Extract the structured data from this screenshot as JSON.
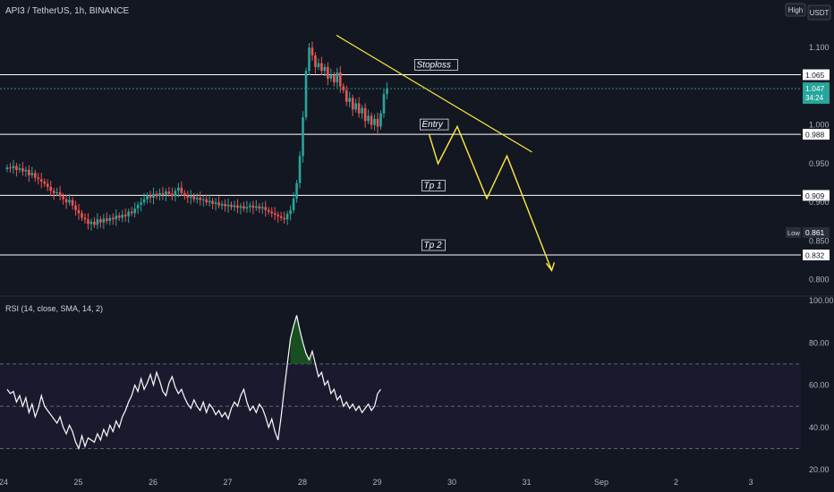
{
  "header": {
    "symbol_title": "API3 / TetherUS, 1h, BINANCE",
    "scale_mode": "High",
    "currency": "USDT"
  },
  "colors": {
    "bull": "#26a69a",
    "bear": "#ef5350",
    "pattern": "#ffeb3b",
    "level_line": "#ffffff",
    "rsi_line": "#ffffff",
    "rsi_band_fill": "#1a1a2e",
    "rsi_overbought_fill": "#1b5e20"
  },
  "chart_data": [
    {
      "type": "candlestick",
      "title": "API3 / TetherUS, 1h, BINANCE",
      "x_ticks": [
        "24",
        "25",
        "26",
        "27",
        "28",
        "29",
        "30",
        "31",
        "Sep",
        "2",
        "3"
      ],
      "y_ticks": [
        "1.100",
        "1.000",
        "0.950",
        "0.900",
        "0.850",
        "0.800"
      ],
      "ylim": [
        0.78,
        1.15
      ],
      "price_labels": {
        "current": {
          "value": "1.047",
          "countdown": "34:24"
        },
        "high": {
          "label": "High",
          "value": "1.116"
        },
        "low": {
          "label": "Low",
          "value": "0.861"
        }
      },
      "levels": [
        {
          "label": "Stoploss",
          "value": 1.065,
          "text": "1.065"
        },
        {
          "label": "Entry",
          "value": 0.988,
          "text": "0.988"
        },
        {
          "label": "Tp 1",
          "value": 0.909,
          "text": "0.909"
        },
        {
          "label": "Tp 2",
          "value": 0.832,
          "text": "0.832"
        }
      ],
      "candles_close": [
        0.945,
        0.944,
        0.947,
        0.942,
        0.944,
        0.94,
        0.942,
        0.935,
        0.938,
        0.932,
        0.93,
        0.927,
        0.924,
        0.92,
        0.915,
        0.912,
        0.913,
        0.908,
        0.904,
        0.9,
        0.903,
        0.896,
        0.89,
        0.886,
        0.88,
        0.878,
        0.872,
        0.875,
        0.871,
        0.878,
        0.874,
        0.879,
        0.876,
        0.88,
        0.878,
        0.883,
        0.88,
        0.884,
        0.882,
        0.888,
        0.886,
        0.892,
        0.897,
        0.9,
        0.904,
        0.909,
        0.906,
        0.911,
        0.908,
        0.912,
        0.91,
        0.914,
        0.911,
        0.908,
        0.915,
        0.919,
        0.912,
        0.909,
        0.906,
        0.908,
        0.904,
        0.906,
        0.903,
        0.904,
        0.9,
        0.902,
        0.898,
        0.9,
        0.896,
        0.898,
        0.895,
        0.897,
        0.894,
        0.896,
        0.893,
        0.895,
        0.892,
        0.894,
        0.896,
        0.893,
        0.895,
        0.892,
        0.894,
        0.89,
        0.888,
        0.886,
        0.884,
        0.882,
        0.88,
        0.878,
        0.885,
        0.89,
        0.905,
        0.925,
        0.96,
        1.01,
        1.07,
        1.1,
        1.09,
        1.075,
        1.08,
        1.07,
        1.075,
        1.06,
        1.065,
        1.055,
        1.068,
        1.05,
        1.045,
        1.03,
        1.035,
        1.02,
        1.028,
        1.015,
        1.022,
        1.005,
        1.012,
        1.0,
        1.008,
        0.998,
        1.015,
        1.04,
        1.047
      ],
      "trendline": [
        {
          "x": "28",
          "y": 1.116
        },
        {
          "x": "31",
          "y": 0.965
        }
      ],
      "projection_path": [
        {
          "x": "29",
          "y": 0.988
        },
        {
          "x": "29",
          "y": 0.95
        },
        {
          "x": "30",
          "y": 0.998
        },
        {
          "x": "30",
          "y": 0.905
        },
        {
          "x": "31",
          "y": 0.96
        },
        {
          "x": "31",
          "y": 0.812
        }
      ]
    },
    {
      "type": "line",
      "title": "RSI (14, close, SMA, 14, 2)",
      "y_ticks": [
        "100.00",
        "80.00",
        "60.00",
        "40.00",
        "20.00"
      ],
      "ylim": [
        20,
        100
      ],
      "upper_band": 70,
      "middle_band": 50,
      "lower_band": 30,
      "values": [
        58,
        56,
        57,
        52,
        55,
        50,
        54,
        47,
        51,
        45,
        49,
        55,
        50,
        48,
        46,
        44,
        42,
        45,
        40,
        37,
        41,
        38,
        33,
        30,
        36,
        31,
        35,
        34,
        33,
        37,
        34,
        39,
        36,
        41,
        38,
        43,
        40,
        45,
        48,
        52,
        55,
        60,
        57,
        63,
        58,
        61,
        65,
        60,
        66,
        62,
        57,
        55,
        61,
        64,
        59,
        56,
        58,
        54,
        51,
        49,
        53,
        50,
        48,
        52,
        47,
        51,
        49,
        46,
        48,
        45,
        47,
        44,
        49,
        52,
        50,
        55,
        58,
        52,
        48,
        50,
        47,
        51,
        49,
        45,
        40,
        44,
        38,
        34,
        45,
        58,
        70,
        82,
        88,
        93,
        86,
        80,
        75,
        72,
        76,
        70,
        64,
        66,
        60,
        62,
        56,
        58,
        53,
        55,
        50,
        52,
        49,
        51,
        48,
        50,
        47,
        49,
        51,
        48,
        50,
        56,
        58
      ]
    }
  ]
}
